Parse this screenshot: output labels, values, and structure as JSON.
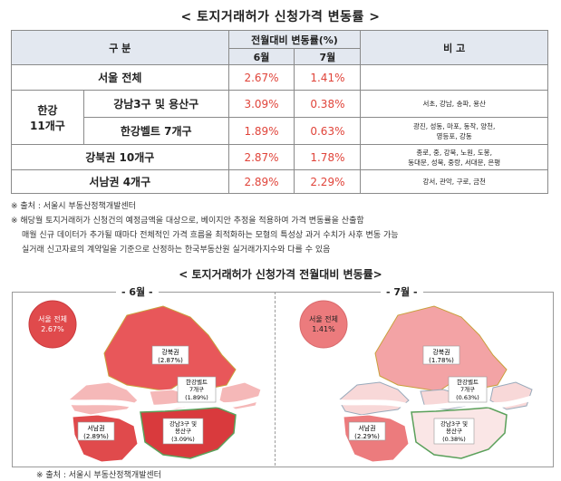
{
  "title": "< 토지거래허가 신청가격 변동률 >",
  "table": {
    "header_gubun": "구 분",
    "header_change": "전월대비 변동률(%)",
    "header_jun": "6월",
    "header_jul": "7월",
    "header_note": "비 고",
    "seoul_label": "서울 전체",
    "seoul_jun": "2.67%",
    "seoul_jul": "1.41%",
    "hangang_label_1": "한강",
    "hangang_label_2": "11개구",
    "gangnam_label": "강남3구 및 용산구",
    "gangnam_jun": "3.09%",
    "gangnam_jul": "0.38%",
    "gangnam_note": "서초, 강남, 송파, 용산",
    "belt_label": "한강벨트 7개구",
    "belt_jun": "1.89%",
    "belt_jul": "0.63%",
    "belt_note_1": "광진, 성동, 마포, 동작, 양천,",
    "belt_note_2": "영등포, 강동",
    "north_label": "강북권 10개구",
    "north_jun": "2.87%",
    "north_jul": "1.78%",
    "north_note_1": "종로, 중, 강북, 노원, 도봉,",
    "north_note_2": "동대문, 성북, 중랑, 서대문, 은평",
    "sw_label": "서남권 4개구",
    "sw_jun": "2.89%",
    "sw_jul": "2.29%",
    "sw_note": "강서, 관악, 구로, 금천"
  },
  "notes": {
    "source": "※ 출처 : 서울시 부동산정책개발센터",
    "line1": "※ 해당월 토지거래허가 신청건의 예정금액을 대상으로, 베이지안 추정을 적용하여 가격 변동률을 산출함",
    "line2": "매월 신규 데이터가 추가될 때마다 전체적인 가격 흐름을 최적화하는 모형의 특성상 과거 수치가 사후 변동 가능",
    "line3": "실거래 신고자료의 계약일을 기준으로 산정하는 한국부동산원 실거래가지수와 다를 수 있음"
  },
  "map_title": "< 토지거래허가 신청가격 전월대비 변동률>",
  "map_jun": {
    "title": "- 6월 -",
    "seoul_1": "서울 전체",
    "seoul_2": "2.67%",
    "north_1": "강북권",
    "north_2": "(2.87%)",
    "belt_1": "한강벨트",
    "belt_2": "7개구",
    "belt_3": "(1.89%)",
    "sw_1": "서남권",
    "sw_2": "(2.89%)",
    "gangnam_1": "강남3구 및",
    "gangnam_2": "용산구",
    "gangnam_3": "(3.09%)"
  },
  "map_jul": {
    "title": "- 7월 -",
    "seoul_1": "서울 전체",
    "seoul_2": "1.41%",
    "north_1": "강북권",
    "north_2": "(1.78%)",
    "belt_1": "한강벨트",
    "belt_2": "7개구",
    "belt_3": "(0.63%)",
    "sw_1": "서남권",
    "sw_2": "(2.29%)",
    "gangnam_1": "강남3구 및",
    "gangnam_2": "용산구",
    "gangnam_3": "(0.38%)"
  },
  "source2": "※ 출처 : 서울시 부동산정책개발센터",
  "colors": {
    "jun_north": "#e8575a",
    "jun_belt": "#f5b8b8",
    "jun_sw": "#e04a4c",
    "jun_gangnam": "#d93a3d",
    "jul_north": "#f3a3a5",
    "jul_belt": "#f8d8d8",
    "jul_sw": "#ec7b7d",
    "jul_gangnam": "#fae6e6",
    "river": "#ffffff",
    "value_red": "#e0443a"
  }
}
